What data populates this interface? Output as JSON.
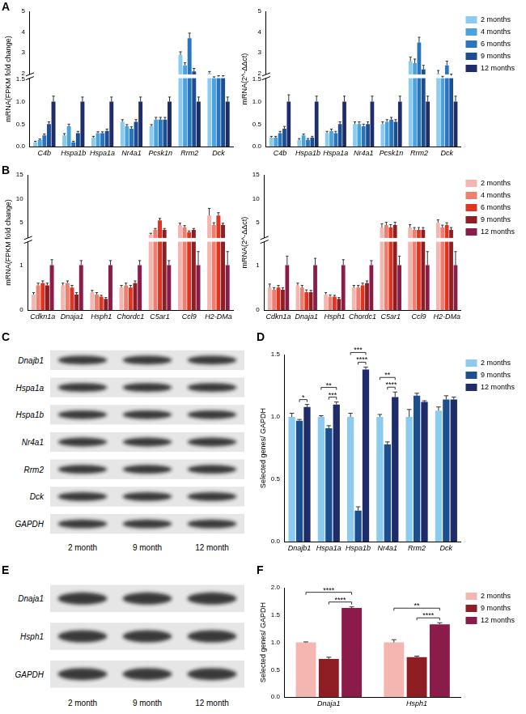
{
  "chart_data": [
    {
      "type": "bar",
      "panel": "A",
      "ylabel": "mRNA(FPKM fold change)",
      "categories": [
        "C4b",
        "Hspa1b",
        "Hspa1a",
        "Nr4a1",
        "Pcsk1n",
        "Rrm2",
        "Dck"
      ],
      "series": [
        {
          "name": "2 months",
          "color": "#8ccbf0",
          "values": [
            0.1,
            0.25,
            0.2,
            0.55,
            0.45,
            2.9,
            2.0
          ],
          "errors": [
            0.02,
            0.04,
            0.03,
            0.05,
            0.04,
            0.15,
            0.1
          ]
        },
        {
          "name": "4 months",
          "color": "#4aa3dc",
          "values": [
            0.15,
            0.45,
            0.3,
            0.45,
            0.6,
            2.4,
            1.6
          ],
          "errors": [
            0.02,
            0.05,
            0.03,
            0.04,
            0.05,
            0.12,
            0.1
          ]
        },
        {
          "name": "6 months",
          "color": "#2a74bd",
          "values": [
            0.25,
            0.1,
            0.3,
            0.4,
            0.6,
            3.7,
            1.7
          ],
          "errors": [
            0.03,
            0.02,
            0.03,
            0.04,
            0.05,
            0.25,
            0.1
          ]
        },
        {
          "name": "9 months",
          "color": "#1b4f8f",
          "values": [
            0.5,
            0.3,
            0.35,
            0.55,
            0.6,
            2.1,
            1.7
          ],
          "errors": [
            0.05,
            0.04,
            0.04,
            0.05,
            0.05,
            0.15,
            0.1
          ]
        },
        {
          "name": "12 months",
          "color": "#1e2c6a",
          "values": [
            1,
            1,
            1,
            1,
            1,
            1,
            1
          ],
          "errors": [
            0.12,
            0.1,
            0.1,
            0.1,
            0.1,
            0.1,
            0.1
          ]
        }
      ],
      "ylim": [
        0,
        5
      ],
      "ybreak": [
        1.5,
        2
      ],
      "yticks": [
        {
          "value": 0,
          "label": "0.0"
        },
        0.5,
        {
          "value": 1,
          "label": "1.0"
        },
        1.5,
        2,
        3,
        4,
        5
      ],
      "grid": false
    },
    {
      "type": "bar",
      "ylabel": "mRNA(2^-ΔΔct)",
      "categories": [
        "C4b",
        "Hspa1b",
        "Hspa1a",
        "Nr4a1",
        "Pcsk1n",
        "Rrm2",
        "Dck"
      ],
      "series": [
        {
          "name": "2 months",
          "color": "#8ccbf0",
          "values": [
            0.2,
            0.15,
            0.3,
            0.5,
            0.5,
            2.6,
            2.0
          ],
          "errors": [
            0.03,
            0.03,
            0.04,
            0.05,
            0.05,
            0.2,
            0.15
          ]
        },
        {
          "name": "4 months",
          "color": "#4aa3dc",
          "values": [
            0.2,
            0.25,
            0.35,
            0.5,
            0.55,
            2.5,
            1.6
          ],
          "errors": [
            0.03,
            0.03,
            0.04,
            0.05,
            0.05,
            0.2,
            0.15
          ]
        },
        {
          "name": "6 months",
          "color": "#2a74bd",
          "values": [
            0.3,
            0.15,
            0.3,
            0.45,
            0.6,
            3.5,
            2.4
          ],
          "errors": [
            0.04,
            0.03,
            0.04,
            0.05,
            0.05,
            0.25,
            0.2
          ]
        },
        {
          "name": "9 months",
          "color": "#1b4f8f",
          "values": [
            0.4,
            0.2,
            0.5,
            0.5,
            0.55,
            2.2,
            1.8
          ],
          "errors": [
            0.05,
            0.03,
            0.05,
            0.05,
            0.05,
            0.2,
            0.15
          ]
        },
        {
          "name": "12 months",
          "color": "#1e2c6a",
          "values": [
            1,
            1,
            1,
            1,
            1,
            1,
            1
          ],
          "errors": [
            0.15,
            0.12,
            0.12,
            0.12,
            0.12,
            0.12,
            0.12
          ]
        }
      ],
      "ylim": [
        0,
        5
      ],
      "ybreak": [
        1.5,
        2
      ],
      "yticks": [
        {
          "value": 0,
          "label": "0.0"
        },
        0.5,
        {
          "value": 1,
          "label": "1.0"
        },
        1.5,
        2,
        3,
        4,
        5
      ],
      "grid": false,
      "legend": "right"
    },
    {
      "type": "bar",
      "panel": "B",
      "ylabel": "mRNA(FPKM fold change)",
      "categories": [
        "Cdkn1a",
        "Dnaja1",
        "Hsph1",
        "Chordc1",
        "C5ar1",
        "Ccl9",
        "H2-DMa"
      ],
      "series": [
        {
          "name": "2 months",
          "color": "#f4b6b0",
          "values": [
            0.35,
            0.55,
            0.4,
            0.5,
            2.5,
            4.5,
            6.5
          ],
          "errors": [
            0.04,
            0.05,
            0.04,
            0.05,
            0.3,
            0.4,
            1.5
          ]
        },
        {
          "name": "4 months",
          "color": "#ee7f6e",
          "values": [
            0.55,
            0.6,
            0.35,
            0.55,
            3.5,
            4.0,
            4.5
          ],
          "errors": [
            0.05,
            0.05,
            0.04,
            0.05,
            0.3,
            0.4,
            0.5
          ]
        },
        {
          "name": "6 months",
          "color": "#e1331f",
          "values": [
            0.6,
            0.5,
            0.3,
            0.5,
            5.5,
            3.0,
            6.5
          ],
          "errors": [
            0.05,
            0.05,
            0.03,
            0.05,
            0.4,
            0.3,
            0.6
          ]
        },
        {
          "name": "9 months",
          "color": "#8e1d24",
          "values": [
            0.55,
            0.35,
            0.25,
            0.6,
            3.5,
            3.5,
            4.5
          ],
          "errors": [
            0.05,
            0.04,
            0.03,
            0.05,
            0.3,
            0.3,
            0.4
          ]
        },
        {
          "name": "12 months",
          "color": "#8b1c4a",
          "values": [
            1,
            1,
            1,
            1,
            1,
            1,
            1
          ],
          "errors": [
            0.12,
            0.1,
            0.1,
            0.1,
            0.1,
            0.3,
            0.3
          ]
        }
      ],
      "ylim": [
        0,
        15
      ],
      "ybreak": [
        1.5,
        2
      ],
      "yticks": [
        0,
        1,
        5,
        10,
        15
      ],
      "grid": false
    },
    {
      "type": "bar",
      "ylabel": "mRNA(2^-ΔΔct)",
      "categories": [
        "Cdkn1a",
        "Dnaja1",
        "Hsph1",
        "Chordc1",
        "C5ar1",
        "Ccl9",
        "H2-DMa"
      ],
      "series": [
        {
          "name": "2 months",
          "color": "#f4b6b0",
          "values": [
            0.5,
            0.55,
            0.35,
            0.5,
            4.0,
            4.0,
            5.0
          ],
          "errors": [
            0.08,
            0.05,
            0.04,
            0.05,
            0.8,
            0.6,
            0.6
          ]
        },
        {
          "name": "4 months",
          "color": "#ee7f6e",
          "values": [
            0.45,
            0.5,
            0.3,
            0.5,
            4.5,
            3.5,
            4.0
          ],
          "errors": [
            0.05,
            0.05,
            0.04,
            0.05,
            0.6,
            0.5,
            0.5
          ]
        },
        {
          "name": "6 months",
          "color": "#e1331f",
          "values": [
            0.5,
            0.4,
            0.3,
            0.55,
            4.0,
            3.5,
            4.5
          ],
          "errors": [
            0.05,
            0.05,
            0.03,
            0.05,
            0.6,
            0.5,
            0.5
          ]
        },
        {
          "name": "9 months",
          "color": "#8e1d24",
          "values": [
            0.45,
            0.4,
            0.25,
            0.6,
            4.5,
            3.5,
            3.5
          ],
          "errors": [
            0.05,
            0.04,
            0.03,
            0.05,
            0.6,
            0.5,
            0.5
          ]
        },
        {
          "name": "12 months",
          "color": "#8b1c4a",
          "values": [
            1,
            1,
            1,
            1,
            1,
            1,
            1
          ],
          "errors": [
            0.2,
            0.15,
            0.12,
            0.1,
            0.2,
            0.3,
            0.3
          ]
        }
      ],
      "ylim": [
        0,
        15
      ],
      "ybreak": [
        1.5,
        2
      ],
      "yticks": [
        0,
        1,
        5,
        10,
        15
      ],
      "grid": false,
      "legend": "right"
    },
    {
      "type": "bar",
      "panel": "D",
      "ylabel": "Selected genes/ GAPDH",
      "categories": [
        "Dnajb1",
        "Hspa1a",
        "Hspa1b",
        "Nr4a1",
        "Rrm2",
        "Dck"
      ],
      "series": [
        {
          "name": "2 months",
          "color": "#8ccbf0",
          "values": [
            1.0,
            1.0,
            1.0,
            1.0,
            1.0,
            1.05
          ],
          "errors": [
            0.03,
            0.01,
            0.03,
            0.02,
            0.06,
            0.03
          ]
        },
        {
          "name": "9 months",
          "color": "#1b4f8f",
          "values": [
            0.97,
            0.91,
            0.25,
            0.78,
            1.17,
            1.14
          ],
          "errors": [
            0.01,
            0.02,
            0.03,
            0.02,
            0.02,
            0.03
          ]
        },
        {
          "name": "12 months",
          "color": "#1e2c6a",
          "values": [
            1.08,
            1.1,
            1.38,
            1.16,
            1.12,
            1.14
          ],
          "errors": [
            0.02,
            0.02,
            0.02,
            0.04,
            0.01,
            0.02
          ]
        }
      ],
      "significance": [
        {
          "category": "Dnajb1",
          "from": "9 months",
          "to": "12 months",
          "label": "*"
        },
        {
          "category": "Hspa1a",
          "from": "9 months",
          "to": "12 months",
          "label": "***"
        },
        {
          "category": "Hspa1a",
          "from": "2 months",
          "to": "12 months",
          "label": "**"
        },
        {
          "category": "Hspa1b",
          "from": "9 months",
          "to": "12 months",
          "label": "****"
        },
        {
          "category": "Hspa1b",
          "from": "2 months",
          "to": "12 months",
          "label": "***"
        },
        {
          "category": "Nr4a1",
          "from": "9 months",
          "to": "12 months",
          "label": "****"
        },
        {
          "category": "Nr4a1",
          "from": "2 months",
          "to": "12 months",
          "label": "**"
        }
      ],
      "ylim": [
        0,
        1.5
      ],
      "yticks": [
        {
          "value": 0,
          "label": "0.0"
        },
        0.5,
        {
          "value": 1,
          "label": "1.0"
        },
        1.5
      ],
      "grid": false,
      "legend": "right"
    },
    {
      "type": "bar",
      "panel": "F",
      "ylabel": "Selected genes/ GAPDH",
      "categories": [
        "Dnaja1",
        "Hsph1"
      ],
      "series": [
        {
          "name": "2 months",
          "color": "#f4b6b0",
          "values": [
            1.0,
            1.0
          ],
          "errors": [
            0.01,
            0.05
          ]
        },
        {
          "name": "9 months",
          "color": "#8e1d24",
          "values": [
            0.7,
            0.73
          ],
          "errors": [
            0.03,
            0.02
          ]
        },
        {
          "name": "12 months",
          "color": "#8b1c4a",
          "values": [
            1.63,
            1.33
          ],
          "errors": [
            0.02,
            0.03
          ]
        }
      ],
      "significance": [
        {
          "category": "Dnaja1",
          "from": "9 months",
          "to": "12 months",
          "label": "****"
        },
        {
          "category": "Dnaja1",
          "from": "2 months",
          "to": "12 months",
          "label": "****"
        },
        {
          "category": "Hsph1",
          "from": "9 months",
          "to": "12 months",
          "label": "****"
        },
        {
          "category": "Hsph1",
          "from": "2 months",
          "to": "12 months",
          "label": "**"
        }
      ],
      "ylim": [
        0,
        2
      ],
      "yticks": [
        {
          "value": 0,
          "label": "0.0"
        },
        0.5,
        {
          "value": 1,
          "label": "1.0"
        },
        1.5,
        {
          "value": 2,
          "label": "2.0"
        }
      ],
      "grid": false,
      "legend": "right"
    }
  ],
  "blots": [
    {
      "panel": "C",
      "rows": [
        "Dnajb1",
        "Hspa1a",
        "Hspa1b",
        "Nr4a1",
        "Rrm2",
        "Dck",
        "GAPDH"
      ],
      "lanes": [
        "2 month",
        "9 month",
        "12 month"
      ]
    },
    {
      "panel": "E",
      "rows": [
        "Dnaja1",
        "Hsph1",
        "GAPDH"
      ],
      "lanes": [
        "2 month",
        "9 month",
        "12 month"
      ]
    }
  ]
}
